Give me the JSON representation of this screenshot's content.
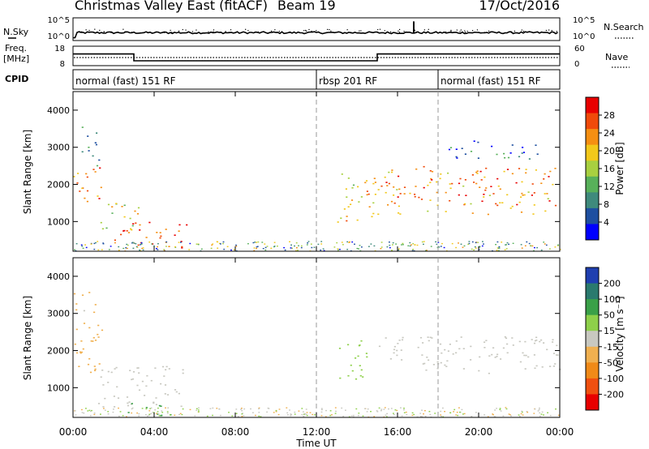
{
  "header": {
    "station": "Christmas Valley East (fitACF)",
    "beam": "Beam 19",
    "date": "17/Oct/2016"
  },
  "nsky_panel": {
    "left_label": "N.Sky",
    "right_label": "N.Search",
    "left_ticks": [
      "10^5",
      "10^0"
    ],
    "right_ticks": [
      "10^5",
      "10^0"
    ]
  },
  "freq_panel": {
    "left_label_1": "Freq.",
    "left_label_2": "[MHz]",
    "right_label": "Nave",
    "left_ticks": [
      "18",
      "8"
    ],
    "right_ticks": [
      "60",
      "0"
    ]
  },
  "cpid": {
    "label": "CPID",
    "segments": [
      {
        "label": "normal (fast) 151 RF",
        "start_hour": 0
      },
      {
        "label": "rbsp 201 RF",
        "start_hour": 12
      },
      {
        "label": "normal (fast) 151 RF",
        "start_hour": 18
      }
    ]
  },
  "power_panel": {
    "ylabel": "Slant Range [km]",
    "yticks": [
      "4000",
      "3000",
      "2000",
      "1000"
    ],
    "colorbar_label": "Power [dB]",
    "colorbar_ticks": [
      "28",
      "24",
      "20",
      "16",
      "12",
      "8",
      "4"
    ],
    "colors": [
      "#0000ff",
      "#1e4fa0",
      "#3f8a7c",
      "#58b05a",
      "#a8d040",
      "#f2c81a",
      "#f58f12",
      "#f04a0a",
      "#e80000"
    ]
  },
  "velocity_panel": {
    "ylabel": "Slant Range [km]",
    "yticks": [
      "4000",
      "3000",
      "2000",
      "1000"
    ],
    "colorbar_label": "Velocity [m s⁻¹]",
    "colorbar_ticks": [
      "200",
      "100",
      "50",
      "15",
      "-15",
      "-50",
      "-100",
      "-200"
    ],
    "colors": [
      "#1f3fb0",
      "#2a7a6e",
      "#3aa048",
      "#8ed04a",
      "#c8c8c0",
      "#f0b050",
      "#f08a18",
      "#f05010",
      "#e80000"
    ]
  },
  "xaxis": {
    "label": "Time UT",
    "ticks": [
      "00:00",
      "04:00",
      "08:00",
      "12:00",
      "16:00",
      "20:00",
      "00:00"
    ]
  },
  "chart_data": [
    {
      "type": "line",
      "title": "N.Sky / N.Search",
      "x": [
        0,
        1,
        2,
        4,
        6,
        8,
        10,
        12,
        14,
        16,
        16.8,
        18,
        20,
        22,
        24
      ],
      "series": [
        {
          "values": [
            1.2,
            1.6,
            1.7,
            1.6,
            1.5,
            1.6,
            1.7,
            1.6,
            1.6,
            1.7,
            4.5,
            1.6,
            1.7,
            1.8,
            1.6
          ]
        }
      ]
    },
    {
      "type": "line",
      "title": "Freq. [MHz]",
      "x": [
        0,
        3,
        3,
        15,
        15,
        24
      ],
      "series": [
        {
          "values": [
            14,
            14,
            10.5,
            10.5,
            14,
            14
          ]
        }
      ],
      "ylim": [
        8,
        18
      ]
    },
    {
      "type": "heatmap",
      "title": "Power [dB]",
      "xlabel": "Time UT",
      "ylabel": "Slant Range [km]",
      "xlim": [
        0,
        24
      ],
      "ylim": [
        200,
        4500
      ],
      "regions": [
        {
          "t0": 0.0,
          "t1": 1.4,
          "r0": 1400,
          "r1": 2500,
          "power": 24
        },
        {
          "t0": 0.4,
          "t1": 1.3,
          "r0": 2500,
          "r1": 3600,
          "power": 12
        },
        {
          "t0": 1.3,
          "t1": 3.2,
          "r0": 700,
          "r1": 1600,
          "power": 18
        },
        {
          "t0": 2.0,
          "t1": 5.6,
          "r0": 300,
          "r1": 1000,
          "power": 26
        },
        {
          "t0": 13.0,
          "t1": 15.0,
          "r0": 1000,
          "r1": 2400,
          "power": 20
        },
        {
          "t0": 15.0,
          "t1": 24.0,
          "r0": 1200,
          "r1": 2500,
          "power": 24
        },
        {
          "t0": 18.5,
          "t1": 23.0,
          "r0": 2700,
          "r1": 3200,
          "power": 8
        }
      ]
    },
    {
      "type": "heatmap",
      "title": "Velocity [m s⁻¹]",
      "xlabel": "Time UT",
      "ylabel": "Slant Range [km]",
      "xlim": [
        0,
        24
      ],
      "ylim": [
        200,
        4500
      ],
      "regions": [
        {
          "t0": 0.0,
          "t1": 1.4,
          "r0": 1400,
          "r1": 3600,
          "velocity": -20
        },
        {
          "t0": 1.2,
          "t1": 5.6,
          "r0": 500,
          "r1": 1600,
          "velocity": 0
        },
        {
          "t0": 2.5,
          "t1": 4.8,
          "r0": 250,
          "r1": 600,
          "velocity": 60
        },
        {
          "t0": 13.0,
          "t1": 14.5,
          "r0": 1200,
          "r1": 2300,
          "velocity": 30
        },
        {
          "t0": 15.0,
          "t1": 24.0,
          "r0": 1400,
          "r1": 2400,
          "velocity": 0
        }
      ]
    }
  ]
}
